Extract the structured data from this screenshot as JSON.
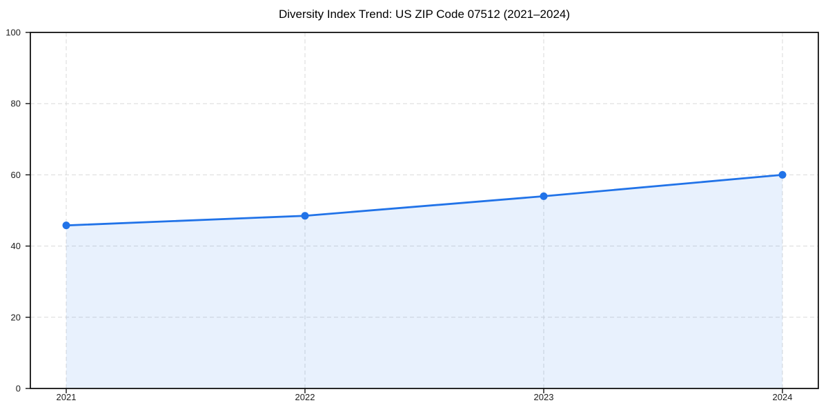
{
  "chart_data": {
    "type": "area",
    "title": "Diversity Index Trend: US ZIP Code 07512 (2021–2024)",
    "categories": [
      "2021",
      "2022",
      "2023",
      "2024"
    ],
    "values": [
      45.8,
      48.5,
      54.0,
      60.0
    ],
    "series_name": "Diversity Index",
    "xlabel": "",
    "ylabel": "",
    "ylim": [
      0,
      100
    ],
    "yticks": [
      0,
      20,
      40,
      60,
      80,
      100
    ],
    "grid": true,
    "grid_style": "dashed",
    "legend": "none",
    "colors": {
      "line": "#2173e8",
      "marker": "#2173e8",
      "fill": "rgba(33,115,232,0.10)",
      "grid": "#d9d9d9",
      "spine": "#111111",
      "tick_label": "#1c1c1c",
      "title": "#000000"
    }
  }
}
